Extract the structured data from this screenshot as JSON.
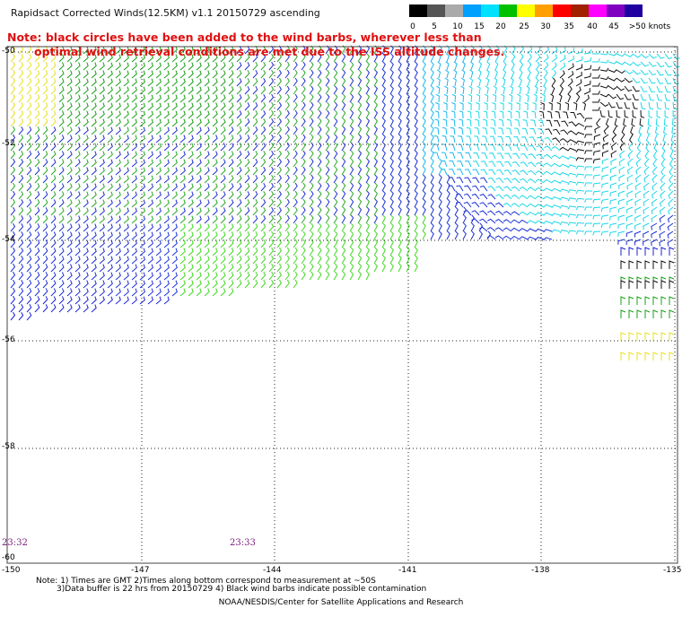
{
  "title": "Rapidsact Corrected Winds(12.5KM) v1.1 20150729 ascending",
  "note": {
    "line1": "Note: black circles have been added to the wind barbs, wherever less than",
    "line2": "optimal wind retrieval conditions are met due to the ISS altitude changes."
  },
  "colorbar": {
    "labels": [
      "0",
      "5",
      "10",
      "15",
      "20",
      "25",
      "30",
      "35",
      "40",
      "45",
      ">50 knots"
    ],
    "colors": [
      "#000000",
      "#555555",
      "#aaaaaa",
      "#00a0ff",
      "#00e0ff",
      "#00c000",
      "#ffff00",
      "#ffa000",
      "#ff0000",
      "#a02000",
      "#ff00ff",
      "#8000c0",
      "#2000a0"
    ]
  },
  "axes": {
    "lon_labels": [
      "-150",
      "-147",
      "-144",
      "-141",
      "-138",
      "-135"
    ],
    "lat_labels": [
      "-50",
      "-52",
      "-54",
      "-56",
      "-58",
      "-60"
    ]
  },
  "times": [
    "23:32",
    "23:33"
  ],
  "footer": {
    "line1": "Note: 1) Times are GMT 2)Times along bottom correspond to measurement at ~50S",
    "line2": "3)Data buffer is 22 hrs from 20150729 4) Black wind barbs indicate possible contamination",
    "credit": "NOAA/NESDIS/Center for Satellite Applications and Research"
  }
}
